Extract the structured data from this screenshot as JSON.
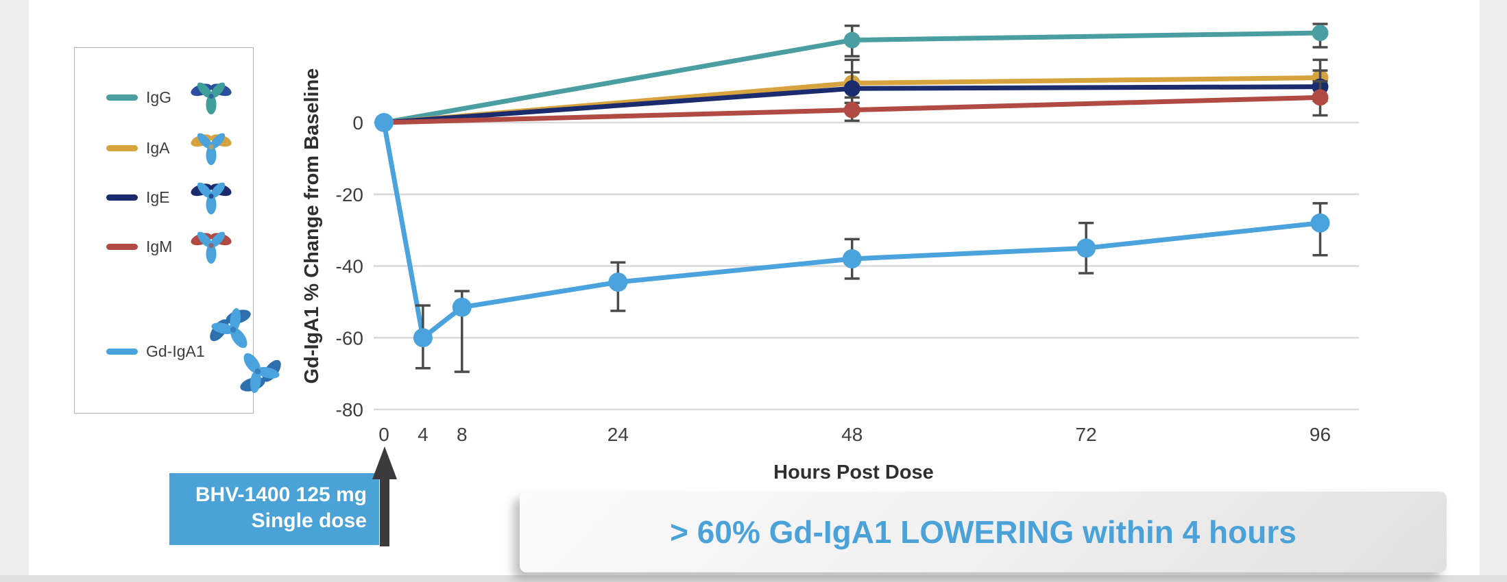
{
  "legend": {
    "items": [
      {
        "label": "IgG",
        "color": "#4a9da0",
        "icon": {
          "arms": "#2b4f9e",
          "body": "#3f9e9a",
          "double": false
        }
      },
      {
        "label": "IgA",
        "color": "#d7a33f",
        "icon": {
          "arms": "#d7a33f",
          "body": "#4aa3dc",
          "double": false
        }
      },
      {
        "label": "IgE",
        "color": "#1a2b6e",
        "icon": {
          "arms": "#1a2b6e",
          "body": "#4aa3dc",
          "double": false
        }
      },
      {
        "label": "IgM",
        "color": "#b04a42",
        "icon": {
          "arms": "#b04a42",
          "body": "#4aa3dc",
          "double": false
        }
      },
      {
        "label": "Gd-IgA1",
        "color": "#4aa3dc",
        "icon": {
          "arms": "#2e6fae",
          "body": "#4aa3dc",
          "double": true
        }
      }
    ]
  },
  "chart_data": {
    "type": "line",
    "xlabel": "Hours Post Dose",
    "ylabel": "Gd-IgA1 % Change from Baseline",
    "xlim": [
      0,
      100
    ],
    "ylim": [
      -85,
      30
    ],
    "grid": true,
    "legend_position": "left-box",
    "xticks": [
      {
        "label": "0",
        "value": 0
      },
      {
        "label": "4",
        "value": 4
      },
      {
        "label": "8",
        "value": 8
      },
      {
        "label": "24",
        "value": 24
      },
      {
        "label": "48",
        "value": 48
      },
      {
        "label": "72",
        "value": 72
      },
      {
        "label": "96",
        "value": 96
      }
    ],
    "yticks": [
      {
        "label": "0",
        "value": 0
      },
      {
        "label": "-20",
        "value": -20
      },
      {
        "label": "-40",
        "value": -40
      },
      {
        "label": "-60",
        "value": -60
      },
      {
        "label": "-80",
        "value": -80
      }
    ],
    "series": [
      {
        "name": "IgG",
        "color": "#4a9da0",
        "marker_r": 12,
        "points": [
          {
            "x": 0,
            "y": 0
          },
          {
            "x": 48,
            "y": 23,
            "err_lo": 18.5,
            "err_hi": 27
          },
          {
            "x": 96,
            "y": 25,
            "err_lo": 21,
            "err_hi": 27.5
          }
        ]
      },
      {
        "name": "IgA",
        "color": "#d7a33f",
        "marker_r": 12,
        "points": [
          {
            "x": 0,
            "y": 0
          },
          {
            "x": 48,
            "y": 11,
            "err_lo": 5.5,
            "err_hi": 17.5
          },
          {
            "x": 96,
            "y": 12.5,
            "err_lo": 7.5,
            "err_hi": 17.5
          }
        ]
      },
      {
        "name": "IgE",
        "color": "#1a2b6e",
        "marker_r": 12,
        "points": [
          {
            "x": 0,
            "y": 0
          },
          {
            "x": 48,
            "y": 9.5,
            "err_lo": 5.5,
            "err_hi": 14
          },
          {
            "x": 96,
            "y": 10,
            "err_lo": 6,
            "err_hi": 14.5
          }
        ]
      },
      {
        "name": "IgM",
        "color": "#b04a42",
        "marker_r": 12,
        "points": [
          {
            "x": 0,
            "y": 0
          },
          {
            "x": 48,
            "y": 3.5,
            "err_lo": 0.5,
            "err_hi": 7
          },
          {
            "x": 96,
            "y": 7,
            "err_lo": 2,
            "err_hi": 11.5
          }
        ]
      },
      {
        "name": "Gd-IgA1",
        "color": "#4aa3dc",
        "marker_r": 14,
        "points": [
          {
            "x": 0,
            "y": 0
          },
          {
            "x": 4,
            "y": -60,
            "err_lo": -68.5,
            "err_hi": -51
          },
          {
            "x": 8,
            "y": -51.5,
            "err_lo": -69.5,
            "err_hi": -47
          },
          {
            "x": 24,
            "y": -44.5,
            "err_lo": -52.5,
            "err_hi": -39
          },
          {
            "x": 48,
            "y": -38,
            "err_lo": -43.5,
            "err_hi": -32.5
          },
          {
            "x": 72,
            "y": -35,
            "err_lo": -42,
            "err_hi": -28
          },
          {
            "x": 96,
            "y": -28,
            "err_lo": -37,
            "err_hi": -22.5
          }
        ]
      }
    ]
  },
  "dose_callout": {
    "line1": "BHV-1400 125 mg",
    "line2": "Single dose"
  },
  "banner": {
    "text": "> 60% Gd-IgA1 LOWERING within 4 hours"
  },
  "colors": {
    "gridline": "#d9d9d9",
    "error_bar": "#4a4a4a",
    "tick_text": "#3f3f3f",
    "banner_text": "#4aa2d8",
    "dose_box": "#4ba2d6",
    "arrow": "#3b3b3d"
  }
}
